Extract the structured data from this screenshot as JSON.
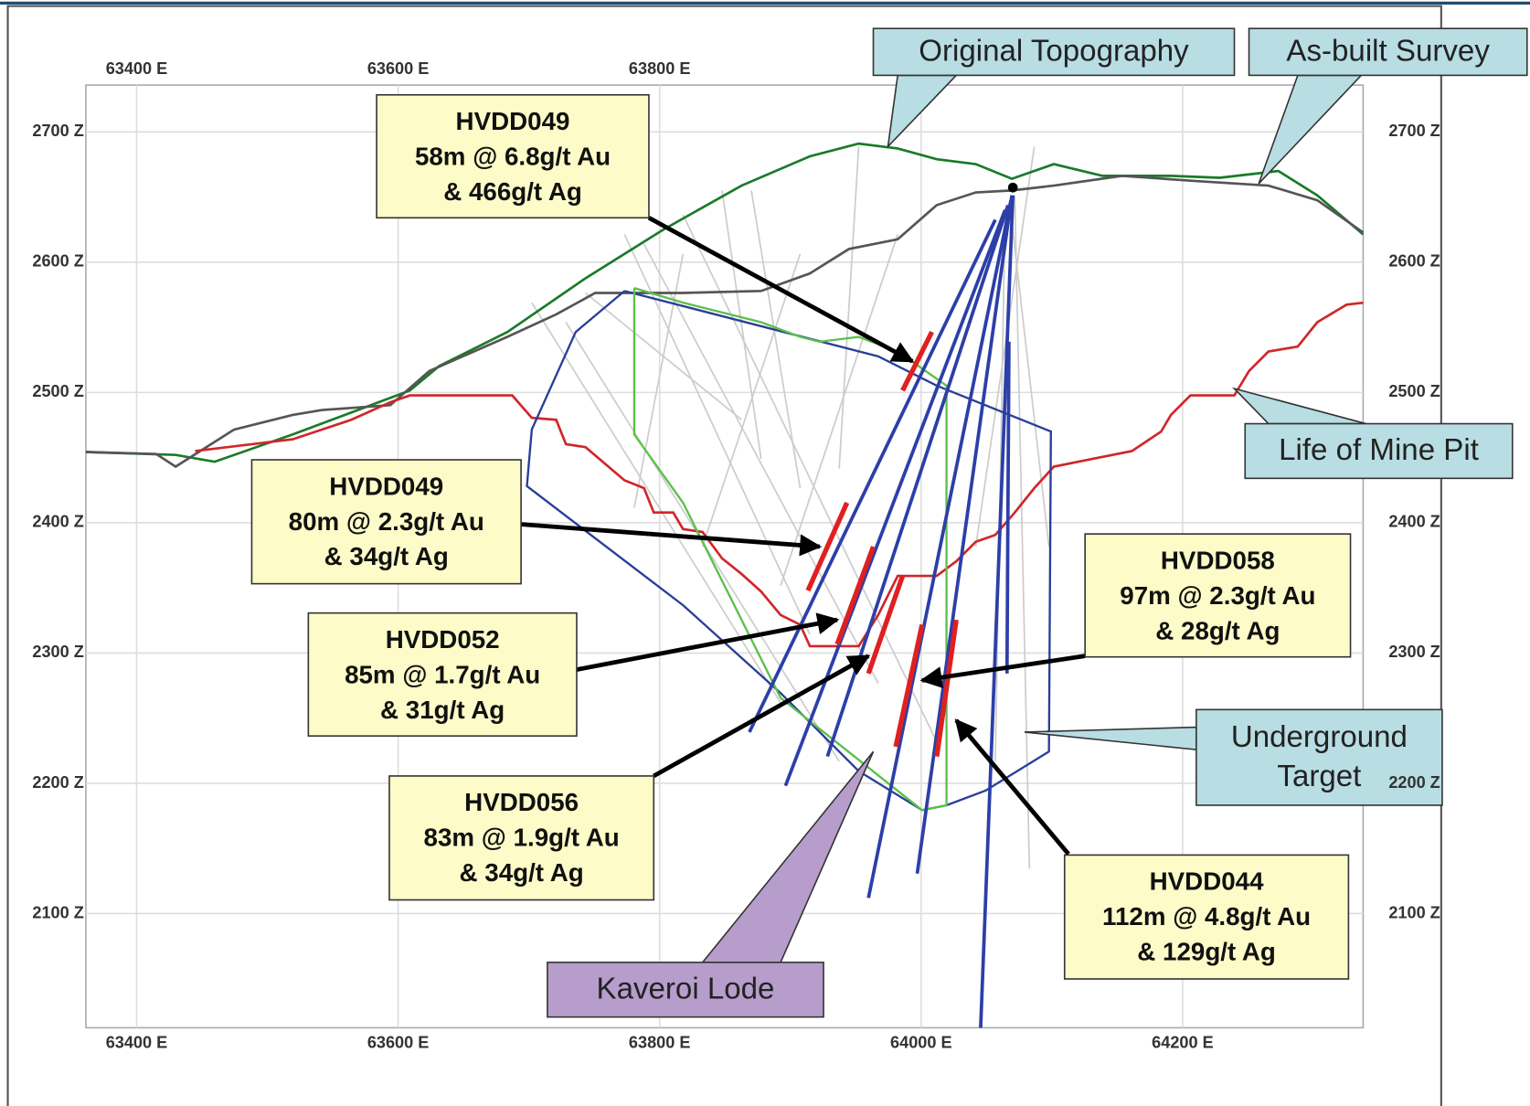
{
  "x_axis": {
    "ticks": [
      {
        "value": 63400,
        "label": "63400 E"
      },
      {
        "value": 63600,
        "label": "63600 E"
      },
      {
        "value": 63800,
        "label": "63800 E"
      },
      {
        "value": 64000,
        "label": "64000 E"
      },
      {
        "value": 64200,
        "label": "64200 E"
      }
    ]
  },
  "y_axis": {
    "ticks": [
      {
        "value": 2700,
        "label": "2700 Z"
      },
      {
        "value": 2600,
        "label": "2600 Z"
      },
      {
        "value": 2500,
        "label": "2500 Z"
      },
      {
        "value": 2400,
        "label": "2400 Z"
      },
      {
        "value": 2300,
        "label": "2300 Z"
      },
      {
        "value": 2200,
        "label": "2200 Z"
      },
      {
        "value": 2100,
        "label": "2100 Z"
      }
    ]
  },
  "callouts": [
    {
      "hole": "HVDD049",
      "lines": [
        "58m @ 6.8g/t Au",
        "& 466g/t Ag"
      ]
    },
    {
      "hole": "HVDD049",
      "lines": [
        "80m @ 2.3g/t Au",
        "& 34g/t Ag"
      ]
    },
    {
      "hole": "HVDD052",
      "lines": [
        "85m @ 1.7g/t Au",
        "& 31g/t Ag"
      ]
    },
    {
      "hole": "HVDD056",
      "lines": [
        "83m @ 1.9g/t Au",
        "& 34g/t Ag"
      ]
    },
    {
      "hole": "HVDD058",
      "lines": [
        "97m @ 2.3g/t Au",
        "& 28g/t Ag"
      ]
    },
    {
      "hole": "HVDD044",
      "lines": [
        "112m @ 4.8g/t Au",
        "& 129g/t Ag"
      ]
    }
  ],
  "labels": {
    "original_topography": "Original Topography",
    "as_built_survey": "As-built Survey",
    "life_of_mine_pit": "Life of Mine Pit",
    "underground_target": [
      "Underground",
      "Target"
    ],
    "kaveroi_lode": "Kaveroi Lode"
  }
}
